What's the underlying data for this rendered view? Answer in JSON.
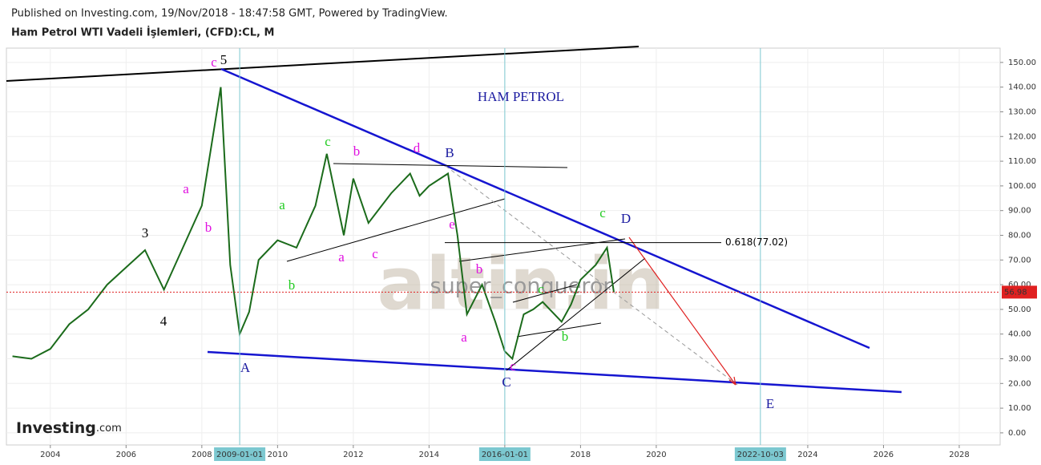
{
  "header": {
    "published": "Published on Investing.com, 19/Nov/2018 - 18:47:58 GMT, Powered by TradingView.",
    "symbol": "Ham Petrol WTI Vadeli İşlemleri, (CFD):CL, M"
  },
  "watermark": {
    "site": "altin.in",
    "author": "super_conqueror",
    "logo": "Investing",
    "logo_suffix": ".com"
  },
  "chart_data": {
    "type": "line",
    "color": "#1b6b1b",
    "x": [
      2003.0,
      2003.5,
      2004.0,
      2004.5,
      2005.0,
      2005.5,
      2006.0,
      2006.5,
      2007.0,
      2007.5,
      2008.0,
      2008.5,
      2008.75,
      2009.0,
      2009.25,
      2009.5,
      2010.0,
      2010.5,
      2011.0,
      2011.3,
      2011.75,
      2012.0,
      2012.4,
      2012.75,
      2013.0,
      2013.5,
      2013.75,
      2014.0,
      2014.5,
      2014.75,
      2015.0,
      2015.4,
      2015.75,
      2016.0,
      2016.2,
      2016.5,
      2016.75,
      2017.0,
      2017.5,
      2017.75,
      2018.0,
      2018.4,
      2018.7,
      2018.88
    ],
    "values": [
      31,
      30,
      34,
      44,
      50,
      60,
      67,
      74,
      58,
      75,
      92,
      140,
      68,
      40,
      49,
      70,
      78,
      75,
      92,
      113,
      80,
      103,
      85,
      92,
      97,
      105,
      96,
      100,
      105,
      80,
      48,
      60,
      45,
      33,
      30,
      48,
      50,
      53,
      45,
      52,
      62,
      68,
      75,
      57
    ],
    "xlim": [
      2002.84,
      2029.08
    ],
    "ylim": [
      -4.9,
      155.8
    ],
    "xticks": [
      2004,
      2006,
      2008,
      2010,
      2012,
      2014,
      2016,
      2018,
      2020,
      2024,
      2026,
      2028
    ],
    "yticks": [
      {
        "value": 0,
        "label": "0.00"
      },
      {
        "value": 10,
        "label": "10.00"
      },
      {
        "value": 20,
        "label": "20.00"
      },
      {
        "value": 30,
        "label": "30.00"
      },
      {
        "value": 40,
        "label": "40.00"
      },
      {
        "value": 50,
        "label": "50.00"
      },
      {
        "value": 60,
        "label": "60.00"
      },
      {
        "value": 70,
        "label": "70.00"
      },
      {
        "value": 80,
        "label": "80.00"
      },
      {
        "value": 90,
        "label": "90.00"
      },
      {
        "value": 100,
        "label": "100.00"
      },
      {
        "value": 110,
        "label": "110.00"
      },
      {
        "value": 120,
        "label": "120.00"
      },
      {
        "value": 130,
        "label": "130.00"
      },
      {
        "value": 140,
        "label": "140.00"
      },
      {
        "value": 150,
        "label": "150.00"
      }
    ],
    "grid": true,
    "markers": [
      {
        "value": 2009.0,
        "label": "2009-01-01"
      },
      {
        "value": 2016.0,
        "label": "2016-01-01"
      },
      {
        "value": 2022.75,
        "label": "2022-10-03"
      }
    ],
    "price_line": {
      "value": 56.98,
      "label": "56.98",
      "color": "#e02020"
    },
    "fib_line": {
      "value": 77.02,
      "label": "0.618(77.02)"
    },
    "annotations": [
      "HAM PETROL",
      "c",
      "5",
      "3",
      "4",
      "a",
      "b",
      "A",
      "a",
      "b",
      "c",
      "a",
      "b",
      "c",
      "d",
      "B",
      "e",
      "b",
      "a",
      "c",
      "C",
      "c",
      "b",
      "c",
      "D",
      "E"
    ]
  }
}
